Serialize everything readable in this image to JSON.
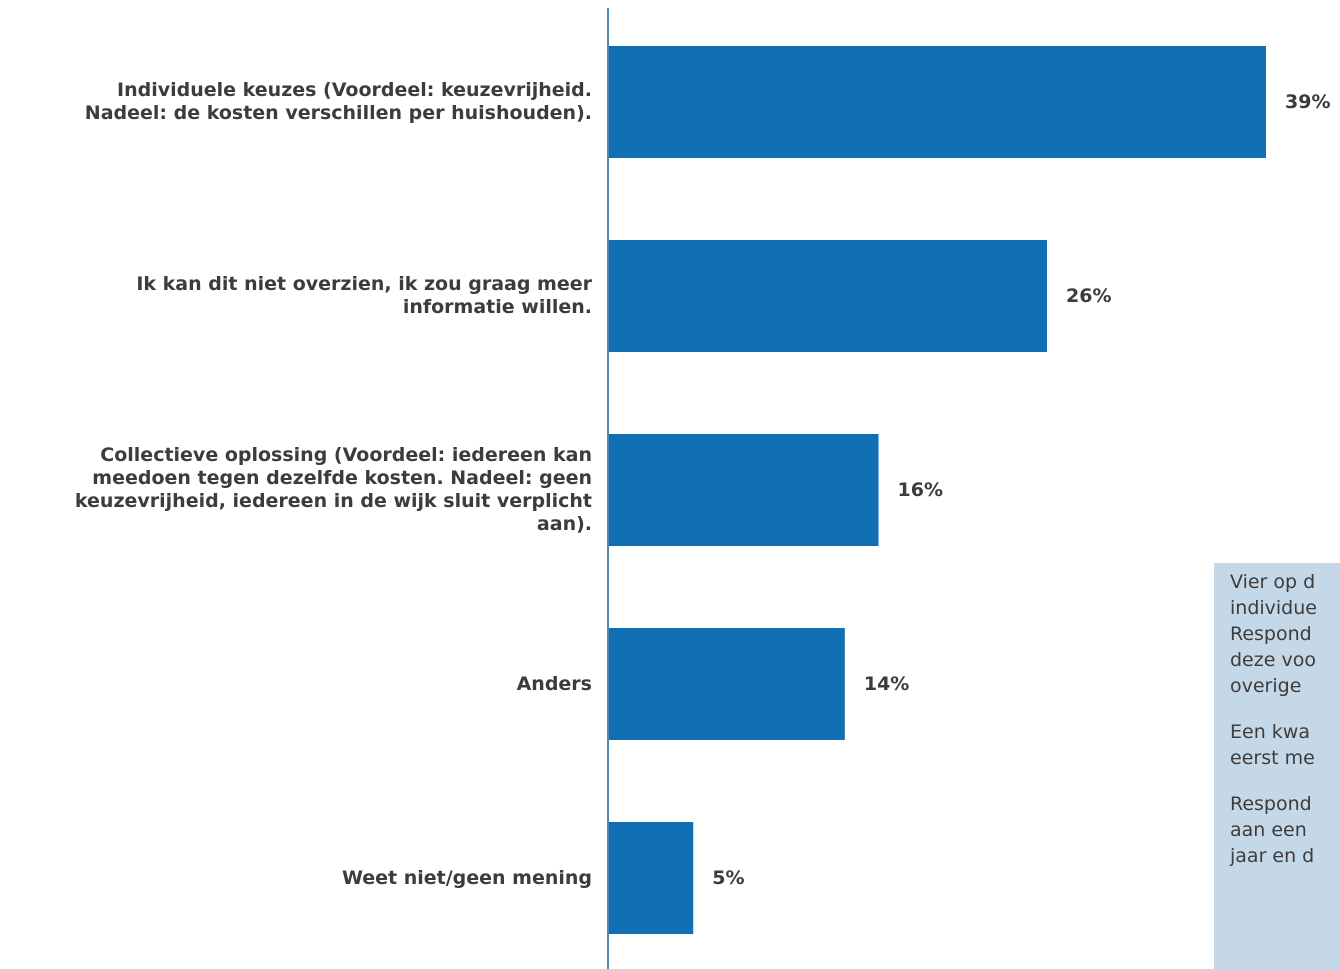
{
  "chart_data": {
    "type": "bar",
    "orientation": "horizontal",
    "categories": [
      "Individuele keuzes (Voordeel: keuzevrijheid.\nNadeel: de kosten verschillen per huishouden).",
      "Ik kan dit niet overzien, ik zou graag meer\ninformatie willen.",
      "Collectieve oplossing (Voordeel: iedereen kan\nmeedoen tegen dezelfde kosten. Nadeel: geen\nkeuzevrijheid, iedereen in de wijk sluit verplicht\naan).",
      "Anders",
      "Weet niet/geen mening"
    ],
    "values": [
      39,
      26,
      16,
      14,
      5
    ],
    "value_labels": [
      "39%",
      "26%",
      "16%",
      "14%",
      "5%"
    ],
    "xlim": [
      0,
      39
    ],
    "grid": false,
    "bar_color": "#1170b3",
    "axis_color": "#1a5f8f"
  },
  "note": {
    "paragraphs": [
      [
        "Vier op d",
        "individue",
        "Respond",
        "deze voo",
        "overige"
      ],
      [
        "Een kwa",
        "eerst me"
      ],
      [
        "Respond",
        "aan een",
        "jaar en d"
      ]
    ],
    "background": "#c5d8e8"
  }
}
